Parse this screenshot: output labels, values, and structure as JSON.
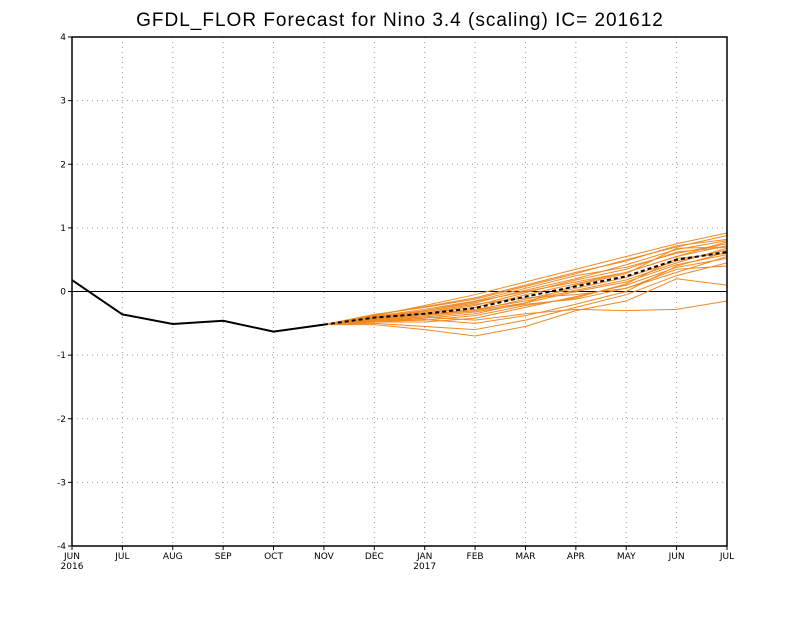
{
  "chart_data": {
    "type": "line",
    "title": "GFDL_FLOR Forecast for Nino 3.4 (scaling) IC= 201612",
    "xlabel": "",
    "ylabel": "",
    "ylim": [
      -4,
      4
    ],
    "yticks": [
      "4",
      "3",
      "2",
      "1",
      "0",
      "-1",
      "-2",
      "-3",
      "-4"
    ],
    "ytick_values": [
      4,
      3,
      2,
      1,
      0,
      -1,
      -2,
      -3,
      -4
    ],
    "xticks": [
      "JUN",
      "JUL",
      "AUG",
      "SEP",
      "OCT",
      "NOV",
      "DEC",
      "JAN",
      "FEB",
      "MAR",
      "APR",
      "MAY",
      "JUN",
      "JUL"
    ],
    "xyears": {
      "0": "2016",
      "7": "2017"
    },
    "grid": true,
    "reference_line": 0,
    "colors": {
      "observed": "#000000",
      "ensemble": "#f08a24",
      "ensemble_mean": "#000000"
    },
    "observed": {
      "x": [
        "JUN",
        "JUL",
        "AUG",
        "SEP",
        "OCT",
        "NOV"
      ],
      "values": [
        0.18,
        -0.36,
        -0.51,
        -0.46,
        -0.63,
        -0.52
      ]
    },
    "ensemble_mean": {
      "style": "dashed",
      "x": [
        "NOV",
        "DEC",
        "JAN",
        "FEB",
        "MAR",
        "APR",
        "MAY",
        "JUN",
        "JUL"
      ],
      "values": [
        -0.52,
        -0.41,
        -0.35,
        -0.26,
        -0.08,
        0.08,
        0.24,
        0.5,
        0.62
      ]
    },
    "ensemble_members": {
      "x": [
        "NOV",
        "DEC",
        "JAN",
        "FEB",
        "MAR",
        "APR",
        "MAY",
        "JUN",
        "JUL"
      ],
      "series": [
        {
          "values": [
            -0.52,
            -0.38,
            -0.22,
            -0.05,
            0.15,
            0.35,
            0.55,
            0.75,
            0.92
          ]
        },
        {
          "values": [
            -0.52,
            -0.36,
            -0.25,
            -0.12,
            0.08,
            0.28,
            0.5,
            0.7,
            0.88
          ]
        },
        {
          "values": [
            -0.52,
            -0.4,
            -0.3,
            -0.18,
            0.02,
            0.2,
            0.42,
            0.66,
            0.8
          ]
        },
        {
          "values": [
            -0.52,
            -0.42,
            -0.34,
            -0.25,
            -0.05,
            0.12,
            0.3,
            0.55,
            0.72
          ]
        },
        {
          "values": [
            -0.52,
            -0.44,
            -0.38,
            -0.3,
            -0.12,
            0.05,
            0.22,
            0.48,
            0.65
          ]
        },
        {
          "values": [
            -0.52,
            -0.46,
            -0.42,
            -0.35,
            -0.18,
            0.0,
            0.15,
            0.42,
            0.58
          ]
        },
        {
          "values": [
            -0.52,
            -0.48,
            -0.48,
            -0.42,
            -0.25,
            -0.08,
            0.1,
            0.38,
            0.52
          ]
        },
        {
          "values": [
            -0.52,
            -0.5,
            -0.55,
            -0.6,
            -0.45,
            -0.25,
            -0.05,
            0.25,
            0.45
          ]
        },
        {
          "values": [
            -0.52,
            -0.52,
            -0.6,
            -0.7,
            -0.55,
            -0.3,
            -0.15,
            0.2,
            0.1
          ]
        },
        {
          "values": [
            -0.52,
            -0.45,
            -0.4,
            -0.45,
            -0.35,
            -0.28,
            -0.3,
            -0.28,
            -0.15
          ]
        },
        {
          "values": [
            -0.52,
            -0.4,
            -0.32,
            -0.2,
            -0.1,
            -0.05,
            0.05,
            0.3,
            0.55
          ]
        },
        {
          "values": [
            -0.52,
            -0.39,
            -0.28,
            -0.15,
            0.05,
            0.25,
            0.38,
            0.6,
            0.75
          ]
        },
        {
          "values": [
            -0.52,
            -0.43,
            -0.36,
            -0.28,
            -0.15,
            0.02,
            0.18,
            0.45,
            0.68
          ]
        },
        {
          "values": [
            -0.52,
            -0.47,
            -0.45,
            -0.38,
            -0.22,
            -0.1,
            0.12,
            0.52,
            0.6
          ]
        },
        {
          "values": [
            -0.52,
            -0.41,
            -0.34,
            -0.22,
            -0.02,
            0.18,
            0.35,
            0.62,
            0.7
          ]
        },
        {
          "values": [
            -0.52,
            -0.37,
            -0.24,
            -0.1,
            0.1,
            0.3,
            0.48,
            0.72,
            0.82
          ]
        },
        {
          "values": [
            -0.52,
            -0.44,
            -0.4,
            -0.32,
            -0.2,
            -0.12,
            0.05,
            0.35,
            0.4
          ]
        },
        {
          "values": [
            -0.52,
            -0.42,
            -0.3,
            -0.16,
            0.0,
            0.15,
            0.3,
            0.55,
            0.78
          ]
        },
        {
          "values": [
            -0.52,
            -0.46,
            -0.44,
            -0.5,
            -0.38,
            -0.2,
            0.0,
            0.4,
            0.62
          ]
        },
        {
          "values": [
            -0.52,
            -0.4,
            -0.36,
            -0.3,
            -0.18,
            0.1,
            0.28,
            0.68,
            0.7
          ]
        }
      ]
    }
  }
}
